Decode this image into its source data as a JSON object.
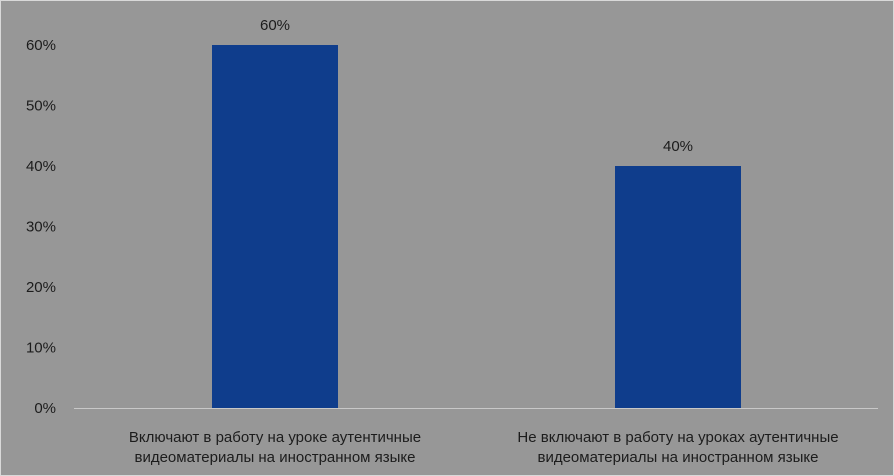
{
  "chart_data": {
    "type": "bar",
    "title": "",
    "xlabel": "",
    "ylabel": "",
    "categories": [
      [
        "Включают в работу на уроке аутентичные",
        "видеоматериалы на иностранном языке"
      ],
      [
        "Не включают в работу на уроках аутентичные",
        "видеоматериалы на иностранном языке"
      ]
    ],
    "values": [
      60,
      40
    ],
    "data_labels": [
      "60%",
      "40%"
    ],
    "ylim": [
      0,
      60
    ],
    "y_ticks": [
      0,
      10,
      20,
      30,
      40,
      50,
      60
    ],
    "y_tick_labels": [
      "0%",
      "10%",
      "20%",
      "30%",
      "40%",
      "50%",
      "60%"
    ],
    "grid": false,
    "legend": "none",
    "colors": {
      "bar": "#0f3d8c",
      "background": "#979797",
      "baseline": "#c8c8c8",
      "text": "#1c1c1c"
    }
  }
}
